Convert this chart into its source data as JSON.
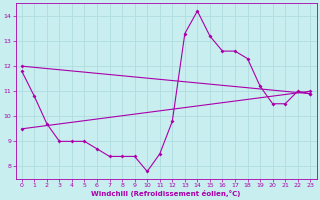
{
  "xlabel": "Windchill (Refroidissement éolien,°C)",
  "bg_color": "#c8eef0",
  "grid_color": "#b0dde0",
  "line_color": "#aa00aa",
  "xlim": [
    -0.5,
    23.5
  ],
  "ylim": [
    7.5,
    14.5
  ],
  "yticks": [
    8,
    9,
    10,
    11,
    12,
    13,
    14
  ],
  "xticks": [
    0,
    1,
    2,
    3,
    4,
    5,
    6,
    7,
    8,
    9,
    10,
    11,
    12,
    13,
    14,
    15,
    16,
    17,
    18,
    19,
    20,
    21,
    22,
    23
  ],
  "line1_x": [
    0,
    1,
    2,
    3,
    4,
    5,
    6,
    7,
    8,
    9,
    10,
    11,
    12,
    13,
    14,
    15,
    16,
    17,
    18,
    19,
    20,
    21,
    22,
    23
  ],
  "line1_y": [
    11.8,
    10.8,
    9.7,
    9.0,
    9.0,
    9.0,
    8.7,
    8.4,
    8.4,
    8.4,
    7.8,
    8.5,
    9.8,
    13.3,
    14.2,
    13.2,
    12.6,
    12.6,
    12.3,
    11.2,
    10.5,
    10.5,
    11.0,
    10.9
  ],
  "line2_x": [
    0,
    23
  ],
  "line2_y": [
    9.5,
    11.0
  ],
  "line3_x": [
    0,
    23
  ],
  "line3_y": [
    12.0,
    10.9
  ]
}
